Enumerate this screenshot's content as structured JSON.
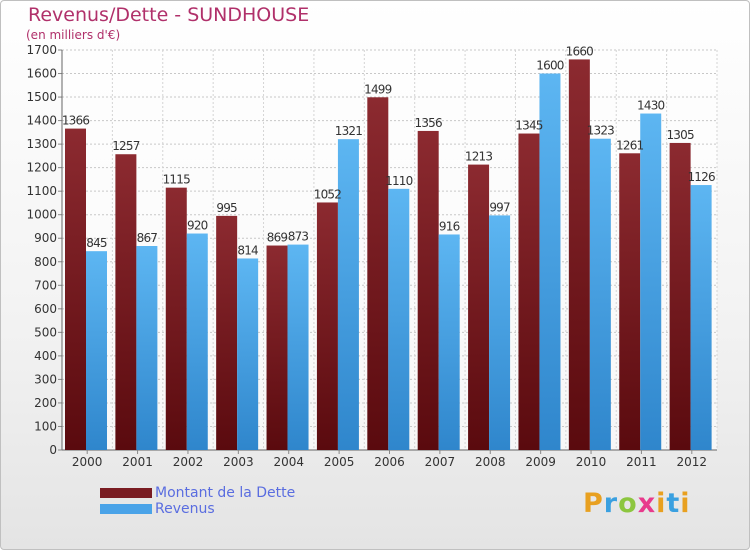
{
  "header": {
    "title": "Revenus/Dette - SUNDHOUSE",
    "subtitle": "(en milliers d'€)"
  },
  "legend": {
    "items": [
      {
        "label": "Montant de la Dette",
        "color": "#7a1c22"
      },
      {
        "label": "Revenus",
        "color": "#4aa3e8"
      }
    ]
  },
  "logo": {
    "letters": [
      "P",
      "r",
      "o",
      "x",
      "i",
      "t",
      "i"
    ],
    "colors": [
      "#e8a020",
      "#3aa0e0",
      "#8cc63f",
      "#e83a8c",
      "#e8a020",
      "#3aa0e0",
      "#e8a020"
    ]
  },
  "chart_data": {
    "type": "bar",
    "categories": [
      "2000",
      "2001",
      "2002",
      "2003",
      "2004",
      "2005",
      "2006",
      "2007",
      "2008",
      "2009",
      "2010",
      "2011",
      "2012"
    ],
    "series": [
      {
        "name": "Montant de la Dette",
        "values": [
          1366,
          1257,
          1115,
          995,
          869,
          1052,
          1499,
          1356,
          1213,
          1345,
          1660,
          1261,
          1305
        ],
        "color": "#7a1c22"
      },
      {
        "name": "Revenus",
        "values": [
          845,
          867,
          920,
          814,
          873,
          1321,
          1110,
          916,
          997,
          1600,
          1323,
          1430,
          1126
        ],
        "color": "#4aa3e8"
      }
    ],
    "data_labels": [
      [
        "1366",
        "1257",
        "1115",
        "995",
        "869",
        "1052",
        "1499",
        "1356",
        "1213",
        "1345",
        "1660",
        "1261",
        "1305"
      ],
      [
        "845",
        "867",
        "920",
        "814",
        "873",
        "1321",
        "1110",
        "916",
        "997",
        "1600",
        "1323",
        "1430",
        "1126"
      ]
    ],
    "title": "Revenus/Dette - SUNDHOUSE",
    "ylabel": "(en milliers d'€)",
    "ylim": [
      0,
      1700
    ],
    "yticks": [
      "0",
      "100",
      "200",
      "300",
      "400",
      "500",
      "600",
      "700",
      "800",
      "900",
      "1000",
      "1100",
      "1200",
      "1300",
      "1400",
      "1500",
      "1600",
      "1700"
    ],
    "grid": true,
    "legend_position": "bottom-left"
  }
}
